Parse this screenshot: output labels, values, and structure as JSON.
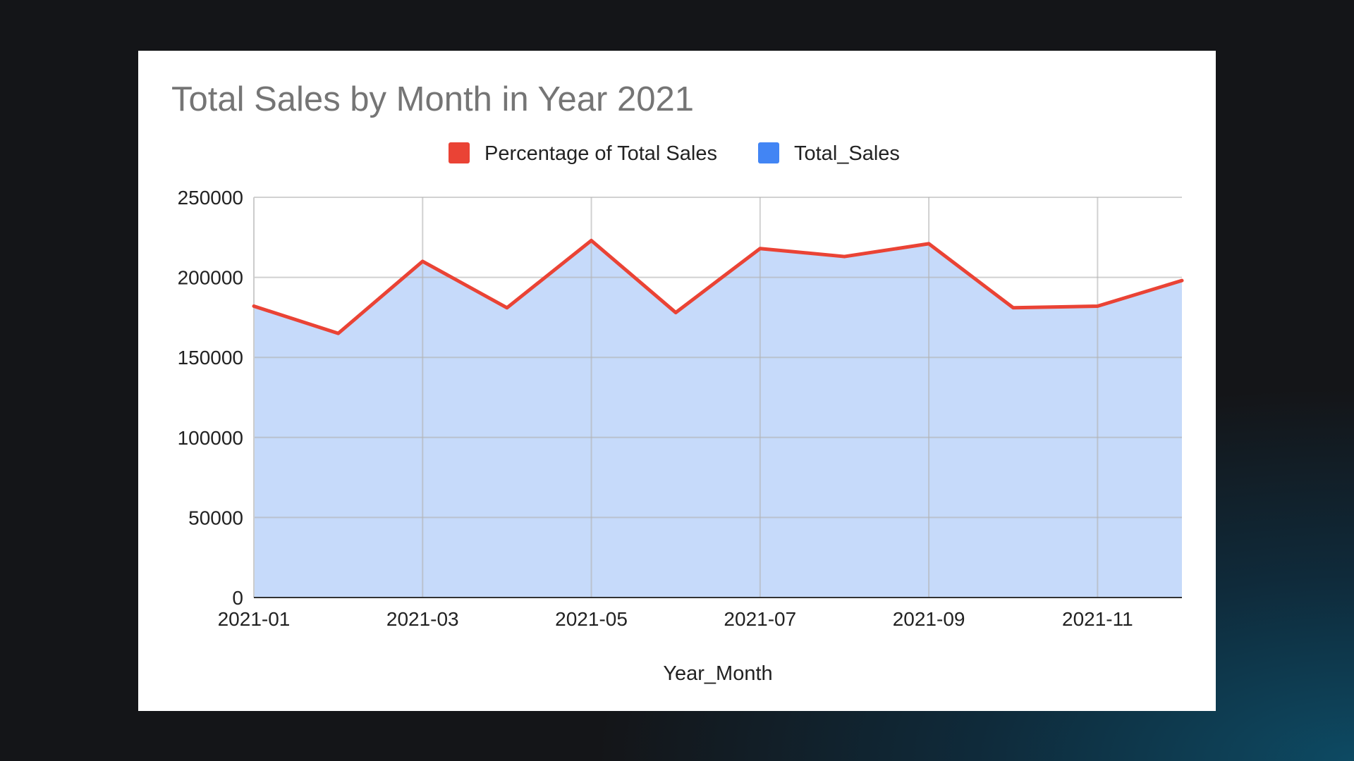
{
  "chart_data": {
    "type": "area",
    "title": "Total Sales by Month in Year 2021",
    "xlabel": "Year_Month",
    "ylabel": "",
    "ylim": [
      0,
      250000
    ],
    "yticks": [
      0,
      50000,
      100000,
      150000,
      200000,
      250000
    ],
    "ytick_labels": [
      "0",
      "50000",
      "100000",
      "150000",
      "200000",
      "250000"
    ],
    "x": [
      "2021-01",
      "2021-02",
      "2021-03",
      "2021-04",
      "2021-05",
      "2021-06",
      "2021-07",
      "2021-08",
      "2021-09",
      "2021-10",
      "2021-11",
      "2021-12"
    ],
    "xtick_labels": [
      "2021-01",
      "2021-03",
      "2021-05",
      "2021-07",
      "2021-09",
      "2021-11"
    ],
    "grid": true,
    "legend_position": "top",
    "series": [
      {
        "name": "Percentage of Total Sales",
        "kind": "line",
        "color": "#ea4335",
        "values": [
          182000,
          165000,
          210000,
          181000,
          223000,
          178000,
          218000,
          213000,
          221000,
          181000,
          182000,
          198000
        ]
      },
      {
        "name": "Total_Sales",
        "kind": "area",
        "color": "#4285f4",
        "fill_color": "#c6dafa",
        "values": [
          182000,
          165000,
          210000,
          181000,
          223000,
          178000,
          218000,
          213000,
          221000,
          181000,
          182000,
          198000
        ]
      }
    ]
  }
}
